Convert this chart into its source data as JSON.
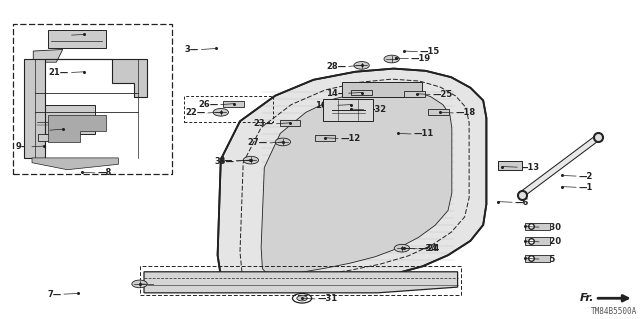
{
  "title": "",
  "bg_color": "#ffffff",
  "diagram_code": "TM84B5500A",
  "fr_label": "Fr.",
  "dark": "#222222",
  "gray": "#888888",
  "light_gray": "#cccccc",
  "panel_gray": "#d8d8d8"
}
